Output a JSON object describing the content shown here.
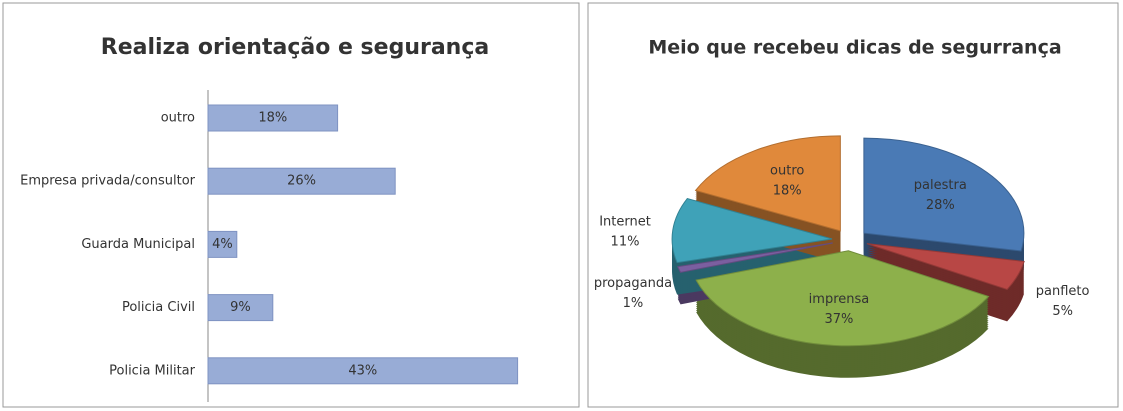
{
  "chart_data": [
    {
      "type": "hbar",
      "title": "Realiza orientação e segurança",
      "categories": [
        "outro",
        "Empresa privada/consultor",
        "Guarda Municipal",
        "Policia Civil",
        "Policia Militar"
      ],
      "values": [
        18,
        26,
        4,
        9,
        43
      ],
      "value_labels": [
        "18%",
        "26%",
        "4%",
        "9%",
        "43%"
      ],
      "color": "#98acd6"
    },
    {
      "type": "pie3d",
      "title": "Meio que recebeu dicas de segurrança",
      "categories": [
        "palestra",
        "panfleto",
        "imprensa",
        "propaganda",
        "Internet",
        "outro"
      ],
      "values": [
        28,
        5,
        37,
        1,
        11,
        18
      ],
      "value_labels": [
        "28%",
        "5%",
        "37%",
        "1%",
        "11%",
        "18%"
      ],
      "colors": [
        "#4a7ab5",
        "#b84745",
        "#8db04b",
        "#7b5fa0",
        "#3fa2b8",
        "#e0893b"
      ]
    }
  ]
}
